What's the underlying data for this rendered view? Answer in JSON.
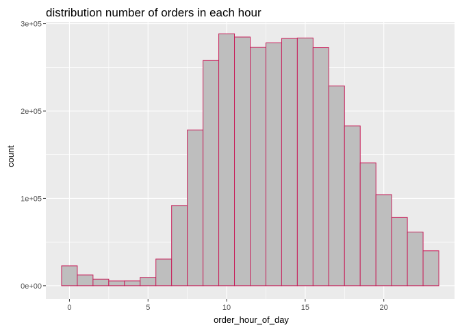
{
  "chart_data": {
    "type": "bar",
    "title": "distribution number of orders in each hour",
    "xlabel": "order_hour_of_day",
    "ylabel": "count",
    "x": [
      0,
      1,
      2,
      3,
      4,
      5,
      6,
      7,
      8,
      9,
      10,
      11,
      12,
      13,
      14,
      15,
      16,
      17,
      18,
      19,
      20,
      21,
      22,
      23
    ],
    "values": [
      22758,
      12398,
      7539,
      5474,
      5527,
      9569,
      30529,
      91868,
      178201,
      257812,
      288418,
      284728,
      272841,
      277999,
      283042,
      283639,
      272553,
      228795,
      182912,
      140569,
      104292,
      78109,
      61468,
      40043
    ],
    "xlim": [
      -1.5,
      24.5
    ],
    "ylim": [
      -15000,
      302000
    ],
    "x_ticks": [
      0,
      5,
      10,
      15,
      20
    ],
    "x_tick_labels": [
      "0",
      "5",
      "10",
      "15",
      "20"
    ],
    "y_ticks": [
      0,
      100000,
      200000,
      300000
    ],
    "y_tick_labels": [
      "0e+00",
      "1e+05",
      "2e+05",
      "3e+05"
    ],
    "grid": true,
    "bar_fill": "#bebebe",
    "bar_stroke": "#c71f5a",
    "panel_background": "#ebebeb",
    "grid_color": "#ffffff"
  }
}
